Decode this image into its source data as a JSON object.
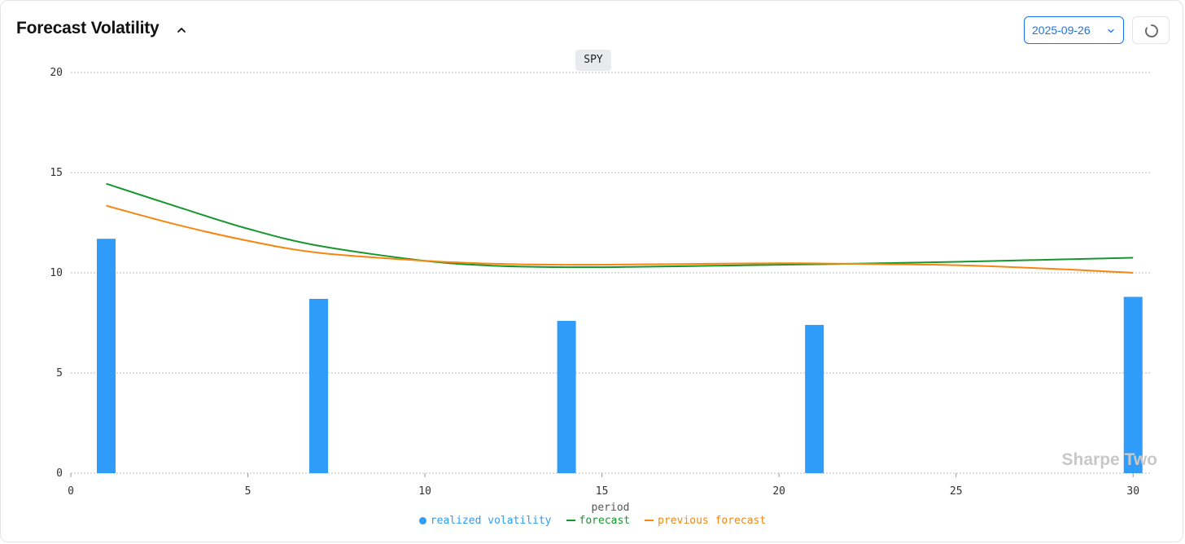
{
  "header": {
    "title": "Forecast Volatility",
    "date_value": "2025-09-26",
    "ticker": "SPY"
  },
  "icons": {
    "collapse": "chevron-up-icon",
    "date_dropdown": "chevron-down-icon",
    "refresh": "loading-spinner-icon"
  },
  "watermark": "Sharpe Two",
  "colors": {
    "realized": "#2f9cf9",
    "forecast": "#18962e",
    "previous": "#f6860d",
    "accent": "#1a73e8"
  },
  "chart_data": {
    "type": "bar",
    "xlabel": "period",
    "ylabel": "",
    "xlim": [
      0,
      30.5
    ],
    "ylim": [
      0,
      20
    ],
    "x_ticks": [
      0,
      5,
      10,
      15,
      20,
      25,
      30
    ],
    "y_ticks": [
      0,
      5,
      10,
      15,
      20
    ],
    "grid": true,
    "legend_position": "bottom",
    "series": [
      {
        "name": "realized volatility",
        "type": "bar",
        "color": "#2f9cf9",
        "x": [
          1,
          7,
          14,
          21,
          30
        ],
        "values": [
          11.7,
          8.7,
          7.6,
          7.4,
          8.8
        ]
      },
      {
        "name": "forecast",
        "type": "line",
        "color": "#18962e",
        "x": [
          1,
          3,
          5,
          7,
          10,
          12,
          14,
          16,
          18,
          20,
          22,
          25,
          28,
          30
        ],
        "values": [
          14.45,
          13.3,
          12.2,
          11.35,
          10.6,
          10.35,
          10.28,
          10.3,
          10.35,
          10.4,
          10.45,
          10.55,
          10.67,
          10.75
        ]
      },
      {
        "name": "previous forecast",
        "type": "line",
        "color": "#f6860d",
        "x": [
          1,
          3,
          5,
          7,
          10,
          12,
          14,
          16,
          18,
          20,
          22,
          25,
          28,
          30
        ],
        "values": [
          13.35,
          12.4,
          11.6,
          11.0,
          10.6,
          10.45,
          10.4,
          10.42,
          10.45,
          10.48,
          10.45,
          10.38,
          10.18,
          10.0
        ]
      }
    ]
  }
}
